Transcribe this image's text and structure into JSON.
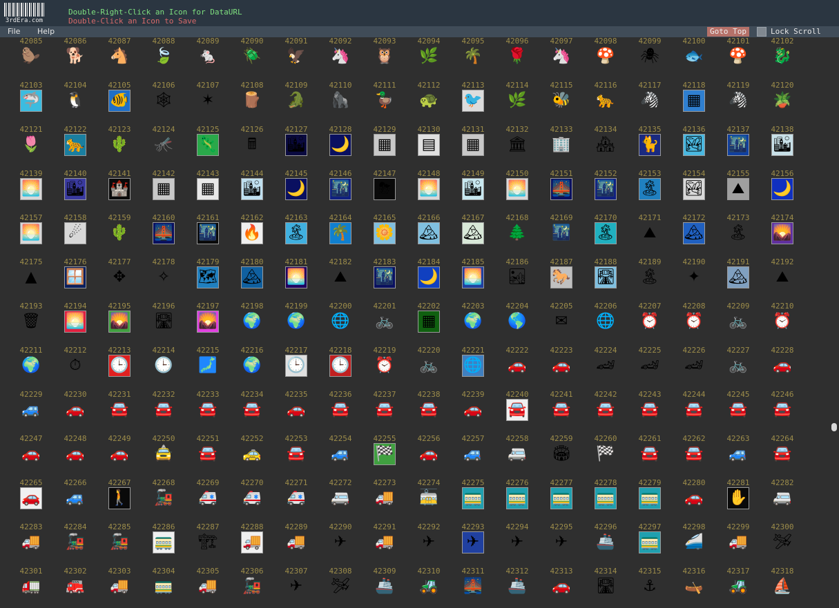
{
  "header": {
    "logo_text": "3rdEra.com",
    "hint_dataurl": "Double-Right-Click an Icon for DataURL",
    "hint_save": "Double-Click an Icon to Save"
  },
  "menubar": {
    "file_label": "File",
    "help_label": "Help",
    "goto_top_label": "Goto Top",
    "lock_scroll_label": "Lock Scroll"
  },
  "grid": {
    "first_id": 42085,
    "last_id": 42318,
    "columns": 18,
    "icons": [
      {
        "g": "🦫",
        "bg": ""
      },
      {
        "g": "🐕",
        "bg": ""
      },
      {
        "g": "🐴",
        "bg": ""
      },
      {
        "g": "🍃",
        "bg": ""
      },
      {
        "g": "🐁",
        "bg": ""
      },
      {
        "g": "🪲",
        "bg": ""
      },
      {
        "g": "🦅",
        "bg": ""
      },
      {
        "g": "🦄",
        "bg": ""
      },
      {
        "g": "🦉",
        "bg": ""
      },
      {
        "g": "🌿",
        "bg": ""
      },
      {
        "g": "🌴",
        "bg": ""
      },
      {
        "g": "🌹",
        "bg": ""
      },
      {
        "g": "🦄",
        "bg": ""
      },
      {
        "g": "🍄",
        "bg": ""
      },
      {
        "g": "🕷",
        "bg": ""
      },
      {
        "g": "🐟",
        "bg": ""
      },
      {
        "g": "🍄",
        "bg": ""
      },
      {
        "g": "🐉",
        "bg": ""
      },
      {
        "g": "🦈",
        "bg": "#3bbce0"
      },
      {
        "g": "🐧",
        "bg": ""
      },
      {
        "g": "🐠",
        "bg": "#1f6fc8"
      },
      {
        "g": "🕸",
        "bg": ""
      },
      {
        "g": "✶",
        "bg": ""
      },
      {
        "g": "🪵",
        "bg": ""
      },
      {
        "g": "🐊",
        "bg": ""
      },
      {
        "g": "🦍",
        "bg": ""
      },
      {
        "g": "🦆",
        "bg": ""
      },
      {
        "g": "🐢",
        "bg": ""
      },
      {
        "g": "🐦",
        "bg": "#dcdcdc"
      },
      {
        "g": "🌿",
        "bg": ""
      },
      {
        "g": "🐝",
        "bg": ""
      },
      {
        "g": "🐆",
        "bg": ""
      },
      {
        "g": "🦓",
        "bg": ""
      },
      {
        "g": "▦",
        "bg": "#2f7fd0"
      },
      {
        "g": "🦓",
        "bg": ""
      },
      {
        "g": "🪴",
        "bg": ""
      },
      {
        "g": "🌷",
        "bg": ""
      },
      {
        "g": "🐆",
        "bg": "#1a7fa0"
      },
      {
        "g": "🌵",
        "bg": ""
      },
      {
        "g": "🦟",
        "bg": ""
      },
      {
        "g": "🦎",
        "bg": "#2aa84a"
      },
      {
        "g": "🖩",
        "bg": ""
      },
      {
        "g": "🏙",
        "bg": "#0a0a40"
      },
      {
        "g": "🌙",
        "bg": "#0a1060"
      },
      {
        "g": "▦",
        "bg": "#c8c8c8"
      },
      {
        "g": "▤",
        "bg": "#e0e0e0"
      },
      {
        "g": "▦",
        "bg": "#c8c8c8"
      },
      {
        "g": "🏛",
        "bg": ""
      },
      {
        "g": "🏢",
        "bg": ""
      },
      {
        "g": "🏘",
        "bg": ""
      },
      {
        "g": "🐈",
        "bg": "#1a2a80"
      },
      {
        "g": "🏞",
        "bg": "#4ab8e0"
      },
      {
        "g": "🌃",
        "bg": "#1040a0"
      },
      {
        "g": "🏙",
        "bg": "#c8e0e8"
      },
      {
        "g": "🌅",
        "bg": "#d8d8d8"
      },
      {
        "g": "🏙",
        "bg": "#3a3aa0"
      },
      {
        "g": "🏰",
        "bg": "#0a0a0a"
      },
      {
        "g": "▦",
        "bg": "#c8c8c8"
      },
      {
        "g": "▦",
        "bg": "#e8e8e8"
      },
      {
        "g": "🏙",
        "bg": "#c0e0f0"
      },
      {
        "g": "🌙",
        "bg": "#0a1060"
      },
      {
        "g": "🌃",
        "bg": "#102080"
      },
      {
        "g": "⛈",
        "bg": "#0a0a0a"
      },
      {
        "g": "🌅",
        "bg": "#d8d8d8"
      },
      {
        "g": "🏙",
        "bg": "#c8e8f0"
      },
      {
        "g": "🌅",
        "bg": "#d8d8d8"
      },
      {
        "g": "🌉",
        "bg": "#0a1060"
      },
      {
        "g": "🌃",
        "bg": "#102080"
      },
      {
        "g": "🏝",
        "bg": "#2080c0"
      },
      {
        "g": "🏞",
        "bg": "#d8d8d8"
      },
      {
        "g": "⛰",
        "bg": "#a0a0a0"
      },
      {
        "g": "🌙",
        "bg": "#1030c0"
      },
      {
        "g": "🌅",
        "bg": "#d8d8d8"
      },
      {
        "g": "☄",
        "bg": "#d8d8d8"
      },
      {
        "g": "🌵",
        "bg": ""
      },
      {
        "g": "🌉",
        "bg": "#0a1060"
      },
      {
        "g": "🌃",
        "bg": "#0a0a0a"
      },
      {
        "g": "🔥",
        "bg": "#f0f0f0"
      },
      {
        "g": "🏝",
        "bg": "#40b0e0"
      },
      {
        "g": "🌴",
        "bg": "#1080d0"
      },
      {
        "g": "🌼",
        "bg": "#80c0e0"
      },
      {
        "g": "🏔",
        "bg": "#80c0e0"
      },
      {
        "g": "🏔",
        "bg": "#d8e8d8"
      },
      {
        "g": "🌲",
        "bg": ""
      },
      {
        "g": "🌃",
        "bg": ""
      },
      {
        "g": "🏝",
        "bg": "#20b0c0"
      },
      {
        "g": "⛰",
        "bg": ""
      },
      {
        "g": "🏔",
        "bg": "#2060c0"
      },
      {
        "g": "🏝",
        "bg": ""
      },
      {
        "g": "🌄",
        "bg": "#6030a0"
      },
      {
        "g": "▲",
        "bg": ""
      },
      {
        "g": "🪟",
        "bg": "#0a2060"
      },
      {
        "g": "✥",
        "bg": ""
      },
      {
        "g": "✧",
        "bg": ""
      },
      {
        "g": "🗺",
        "bg": "#2080c0"
      },
      {
        "g": "🏔",
        "bg": "#1060a0"
      },
      {
        "g": "🌅",
        "bg": "#200060"
      },
      {
        "g": "⛰",
        "bg": ""
      },
      {
        "g": "🌃",
        "bg": "#0a1060"
      },
      {
        "g": "🌙",
        "bg": "#1040c0"
      },
      {
        "g": "🌅",
        "bg": "#2040a0"
      },
      {
        "g": "🏜",
        "bg": ""
      },
      {
        "g": "🐎",
        "bg": "#c0c0c0"
      },
      {
        "g": "🛣",
        "bg": "#80c0e0"
      },
      {
        "g": "🏝",
        "bg": ""
      },
      {
        "g": "✦",
        "bg": ""
      },
      {
        "g": "🏔",
        "bg": "#80a0c0"
      },
      {
        "g": "⛰",
        "bg": ""
      },
      {
        "g": "🗑",
        "bg": ""
      },
      {
        "g": "🌅",
        "bg": "#e02040"
      },
      {
        "g": "🌄",
        "bg": "#40a040"
      },
      {
        "g": "🛣",
        "bg": ""
      },
      {
        "g": "🌄",
        "bg": "#e040e0"
      },
      {
        "g": "🌍",
        "bg": ""
      },
      {
        "g": "🌍",
        "bg": ""
      },
      {
        "g": "🌐",
        "bg": ""
      },
      {
        "g": "🚲",
        "bg": ""
      },
      {
        "g": "▦",
        "bg": "#106010"
      },
      {
        "g": "🌍",
        "bg": ""
      },
      {
        "g": "🌎",
        "bg": ""
      },
      {
        "g": "✉",
        "bg": ""
      },
      {
        "g": "🌐",
        "bg": ""
      },
      {
        "g": "⏰",
        "bg": ""
      },
      {
        "g": "⏰",
        "bg": ""
      },
      {
        "g": "🚲",
        "bg": ""
      },
      {
        "g": "⏰",
        "bg": ""
      },
      {
        "g": "🌍",
        "bg": ""
      },
      {
        "g": "⏱",
        "bg": ""
      },
      {
        "g": "🕒",
        "bg": "#e02020"
      },
      {
        "g": "🕒",
        "bg": ""
      },
      {
        "g": "🗾",
        "bg": ""
      },
      {
        "g": "🌍",
        "bg": ""
      },
      {
        "g": "🕒",
        "bg": "#e0e0e0"
      },
      {
        "g": "🕒",
        "bg": "#c02020"
      },
      {
        "g": "⏰",
        "bg": ""
      },
      {
        "g": "🚲",
        "bg": ""
      },
      {
        "g": "🌐",
        "bg": "#4080c0"
      },
      {
        "g": "🚗",
        "bg": ""
      },
      {
        "g": "🚗",
        "bg": ""
      },
      {
        "g": "🏎",
        "bg": ""
      },
      {
        "g": "🏎",
        "bg": ""
      },
      {
        "g": "🏎",
        "bg": ""
      },
      {
        "g": "🚲",
        "bg": ""
      },
      {
        "g": "🚗",
        "bg": ""
      },
      {
        "g": "🚙",
        "bg": ""
      },
      {
        "g": "🚗",
        "bg": ""
      },
      {
        "g": "🚘",
        "bg": ""
      },
      {
        "g": "🚘",
        "bg": ""
      },
      {
        "g": "🚘",
        "bg": ""
      },
      {
        "g": "🚘",
        "bg": ""
      },
      {
        "g": "🚗",
        "bg": ""
      },
      {
        "g": "🚘",
        "bg": ""
      },
      {
        "g": "🚘",
        "bg": ""
      },
      {
        "g": "🚘",
        "bg": ""
      },
      {
        "g": "🚗",
        "bg": ""
      },
      {
        "g": "🚘",
        "bg": "#f0f0f0"
      },
      {
        "g": "🚘",
        "bg": ""
      },
      {
        "g": "🚘",
        "bg": ""
      },
      {
        "g": "🚘",
        "bg": ""
      },
      {
        "g": "🚘",
        "bg": ""
      },
      {
        "g": "🚘",
        "bg": ""
      },
      {
        "g": "🚘",
        "bg": ""
      },
      {
        "g": "🚗",
        "bg": ""
      },
      {
        "g": "🚗",
        "bg": ""
      },
      {
        "g": "🚗",
        "bg": ""
      },
      {
        "g": "🚖",
        "bg": ""
      },
      {
        "g": "🚘",
        "bg": ""
      },
      {
        "g": "🚕",
        "bg": ""
      },
      {
        "g": "🚘",
        "bg": ""
      },
      {
        "g": "🚙",
        "bg": ""
      },
      {
        "g": "🏁",
        "bg": "#40a040"
      },
      {
        "g": "🚗",
        "bg": ""
      },
      {
        "g": "🚙",
        "bg": ""
      },
      {
        "g": "🚐",
        "bg": ""
      },
      {
        "g": "🏟",
        "bg": ""
      },
      {
        "g": "🏁",
        "bg": ""
      },
      {
        "g": "🚘",
        "bg": ""
      },
      {
        "g": "🚘",
        "bg": ""
      },
      {
        "g": "🚙",
        "bg": ""
      },
      {
        "g": "🚘",
        "bg": ""
      },
      {
        "g": "🚗",
        "bg": "#f0f0f0"
      },
      {
        "g": "🚙",
        "bg": ""
      },
      {
        "g": "🚶",
        "bg": "#0a0a0a"
      },
      {
        "g": "🚂",
        "bg": ""
      },
      {
        "g": "🚑",
        "bg": ""
      },
      {
        "g": "🚑",
        "bg": ""
      },
      {
        "g": "🚑",
        "bg": ""
      },
      {
        "g": "🚐",
        "bg": ""
      },
      {
        "g": "🚚",
        "bg": ""
      },
      {
        "g": "🚋",
        "bg": ""
      },
      {
        "g": "🚃",
        "bg": "#20a0b0"
      },
      {
        "g": "🚃",
        "bg": "#20a0b0"
      },
      {
        "g": "🚃",
        "bg": "#20a0b0"
      },
      {
        "g": "🚃",
        "bg": "#20a0b0"
      },
      {
        "g": "🚃",
        "bg": "#20a0b0"
      },
      {
        "g": "🚗",
        "bg": ""
      },
      {
        "g": "✋",
        "bg": "#0a0a0a"
      },
      {
        "g": "🚐",
        "bg": ""
      },
      {
        "g": "🚚",
        "bg": ""
      },
      {
        "g": "🚂",
        "bg": ""
      },
      {
        "g": "🚂",
        "bg": ""
      },
      {
        "g": "🚃",
        "bg": "#f0f0f0"
      },
      {
        "g": "🏗",
        "bg": ""
      },
      {
        "g": "🚚",
        "bg": "#f0f0f0"
      },
      {
        "g": "🚚",
        "bg": ""
      },
      {
        "g": "✈",
        "bg": ""
      },
      {
        "g": "🚚",
        "bg": ""
      },
      {
        "g": "✈",
        "bg": ""
      },
      {
        "g": "✈",
        "bg": "#2040a0"
      },
      {
        "g": "✈",
        "bg": ""
      },
      {
        "g": "✈",
        "bg": ""
      },
      {
        "g": "🚢",
        "bg": ""
      },
      {
        "g": "🚃",
        "bg": "#20a0b0"
      },
      {
        "g": "🚄",
        "bg": ""
      },
      {
        "g": "🚚",
        "bg": ""
      },
      {
        "g": "🛩",
        "bg": ""
      },
      {
        "g": "🚛",
        "bg": ""
      },
      {
        "g": "🚒",
        "bg": ""
      },
      {
        "g": "🚚",
        "bg": ""
      },
      {
        "g": "🚃",
        "bg": ""
      },
      {
        "g": "🚚",
        "bg": ""
      },
      {
        "g": "🚂",
        "bg": ""
      },
      {
        "g": "✈",
        "bg": ""
      },
      {
        "g": "🛩",
        "bg": ""
      },
      {
        "g": "🚢",
        "bg": ""
      },
      {
        "g": "🚜",
        "bg": ""
      },
      {
        "g": "🌉",
        "bg": ""
      },
      {
        "g": "🚢",
        "bg": ""
      },
      {
        "g": "🚗",
        "bg": ""
      },
      {
        "g": "🛣",
        "bg": ""
      },
      {
        "g": "⚓",
        "bg": ""
      },
      {
        "g": "🛶",
        "bg": ""
      },
      {
        "g": "🚜",
        "bg": ""
      },
      {
        "g": "⛵",
        "bg": ""
      }
    ]
  },
  "colors": {
    "background": "#2f2f2f",
    "header_bg": "#2b3641",
    "menubar_bg": "#404c58",
    "id_label": "#9c8c4a",
    "hint_green": "#7fe07f",
    "hint_red": "#d86a6a",
    "goto_top_bg": "#b57169"
  }
}
